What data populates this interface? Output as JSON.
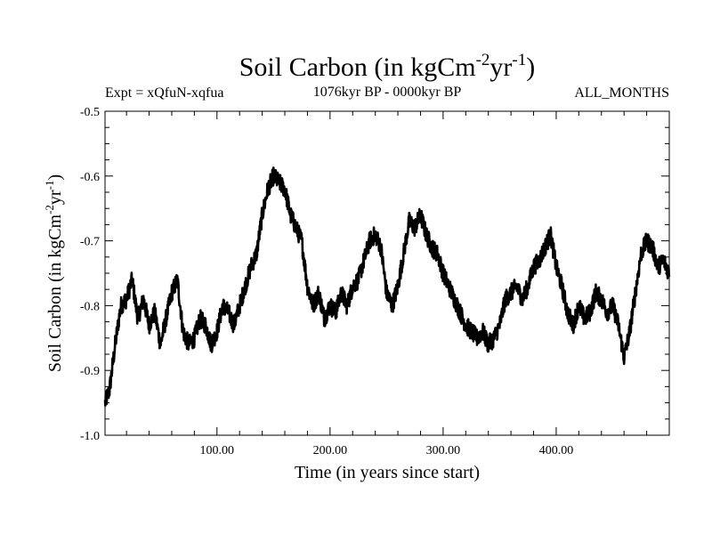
{
  "chart_data": {
    "type": "line",
    "title_main": "Soil Carbon (in kgCm",
    "title_sup1": "-2",
    "title_mid": "yr",
    "title_sup2": "-1",
    "title_end": ")",
    "expt_label": "Expt = xQfuN-xqfua",
    "period_label": "1076kyr BP - 0000kyr BP",
    "months_label": "ALL_MONTHS",
    "xlabel": "Time (in years since start)",
    "ylabel_main": "Soil Carbon (in kgCm",
    "ylabel_sup1": "-2",
    "ylabel_mid": "yr",
    "ylabel_sup2": "-1",
    "ylabel_end": ")",
    "xlim": [
      1,
      500
    ],
    "ylim": [
      -1.0,
      -0.5
    ],
    "xticks": [
      100,
      200,
      300,
      400
    ],
    "xtick_labels": [
      "100.00",
      "200.00",
      "300.00",
      "400.00"
    ],
    "yticks": [
      -0.5,
      -0.6,
      -0.7,
      -0.8,
      -0.9,
      -1.0
    ],
    "ytick_labels": [
      "-0.5",
      "-0.6",
      "-0.7",
      "-0.8",
      "-0.9",
      "-1.0"
    ],
    "line_color": "#000000",
    "series": [
      {
        "name": "Soil Carbon",
        "x": [
          1,
          5,
          10,
          15,
          20,
          25,
          30,
          35,
          40,
          45,
          50,
          55,
          60,
          65,
          70,
          75,
          80,
          85,
          90,
          95,
          100,
          105,
          110,
          115,
          120,
          125,
          130,
          135,
          140,
          145,
          150,
          155,
          160,
          165,
          170,
          175,
          180,
          185,
          190,
          195,
          200,
          205,
          210,
          215,
          220,
          225,
          230,
          235,
          240,
          245,
          250,
          255,
          260,
          265,
          270,
          275,
          280,
          285,
          290,
          295,
          300,
          305,
          310,
          315,
          320,
          325,
          330,
          335,
          340,
          345,
          350,
          355,
          360,
          365,
          370,
          375,
          380,
          385,
          390,
          395,
          400,
          405,
          410,
          415,
          420,
          425,
          430,
          435,
          440,
          445,
          450,
          455,
          460,
          465,
          470,
          475,
          480,
          485,
          490,
          495,
          500
        ],
        "values": [
          -0.95,
          -0.93,
          -0.86,
          -0.8,
          -0.79,
          -0.76,
          -0.82,
          -0.79,
          -0.83,
          -0.81,
          -0.86,
          -0.82,
          -0.78,
          -0.76,
          -0.84,
          -0.86,
          -0.85,
          -0.82,
          -0.83,
          -0.86,
          -0.84,
          -0.8,
          -0.81,
          -0.83,
          -0.8,
          -0.77,
          -0.74,
          -0.72,
          -0.66,
          -0.62,
          -0.6,
          -0.61,
          -0.62,
          -0.66,
          -0.68,
          -0.7,
          -0.77,
          -0.8,
          -0.78,
          -0.82,
          -0.8,
          -0.81,
          -0.78,
          -0.8,
          -0.77,
          -0.76,
          -0.73,
          -0.7,
          -0.69,
          -0.71,
          -0.78,
          -0.8,
          -0.77,
          -0.72,
          -0.67,
          -0.68,
          -0.66,
          -0.69,
          -0.71,
          -0.72,
          -0.75,
          -0.77,
          -0.79,
          -0.81,
          -0.83,
          -0.84,
          -0.85,
          -0.84,
          -0.86,
          -0.85,
          -0.83,
          -0.79,
          -0.78,
          -0.77,
          -0.79,
          -0.77,
          -0.74,
          -0.73,
          -0.71,
          -0.69,
          -0.74,
          -0.77,
          -0.81,
          -0.83,
          -0.8,
          -0.82,
          -0.81,
          -0.78,
          -0.79,
          -0.81,
          -0.8,
          -0.83,
          -0.88,
          -0.84,
          -0.78,
          -0.72,
          -0.7,
          -0.71,
          -0.74,
          -0.73,
          -0.75
        ]
      }
    ]
  }
}
